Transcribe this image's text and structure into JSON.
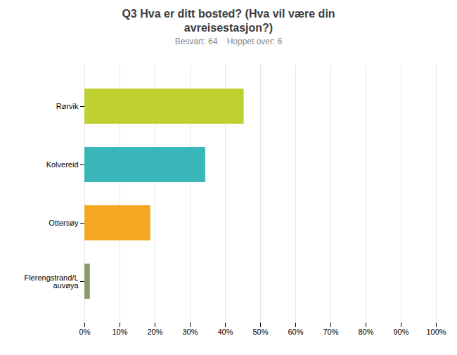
{
  "chart_data": {
    "type": "bar",
    "orientation": "horizontal",
    "title": "Q3 Hva er ditt bosted? (Hva vil være din\navreisestasjon?)",
    "subtitle": "Besvart: 64    Hoppet over: 6",
    "categories": [
      "Rørvik",
      "Kolvereid",
      "Ottersøy",
      "Flerengstrand/L\nauvøya"
    ],
    "values": [
      45.31,
      34.38,
      18.75,
      1.56
    ],
    "colors": [
      "#bfd130",
      "#3ab5b8",
      "#f5a623",
      "#8a9a6a"
    ],
    "xlim": [
      0,
      100
    ],
    "xticks": [
      {
        "value": 0,
        "label": "0%"
      },
      {
        "value": 10,
        "label": "10%"
      },
      {
        "value": 20,
        "label": "20%"
      },
      {
        "value": 30,
        "label": "30%"
      },
      {
        "value": 40,
        "label": "40%"
      },
      {
        "value": 50,
        "label": "50%"
      },
      {
        "value": 60,
        "label": "60%"
      },
      {
        "value": 70,
        "label": "70%"
      },
      {
        "value": 80,
        "label": "80%"
      },
      {
        "value": 90,
        "label": "90%"
      },
      {
        "value": 100,
        "label": "100%"
      }
    ],
    "grid": true
  }
}
